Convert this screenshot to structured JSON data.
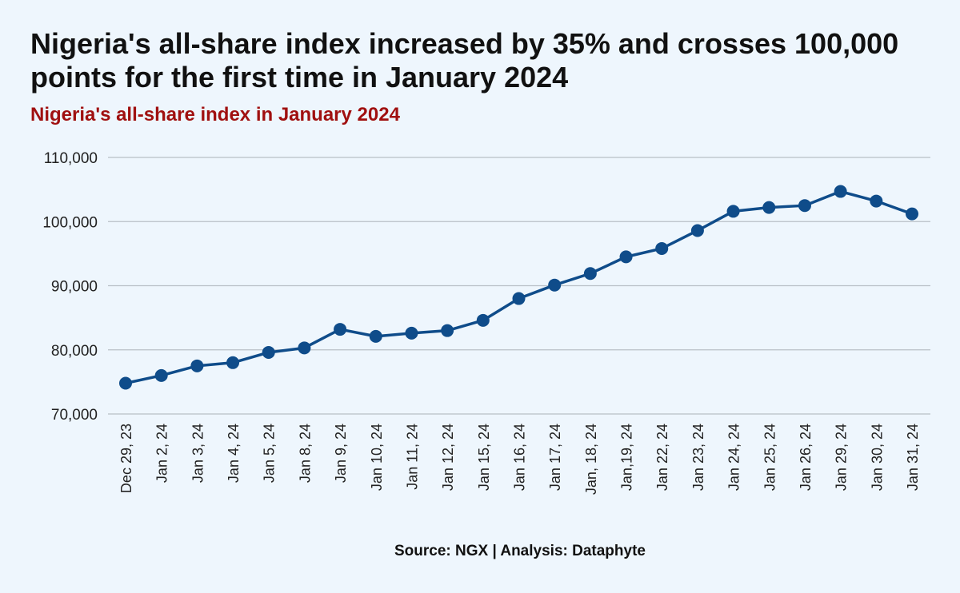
{
  "title": "Nigeria's all-share index increased by 35% and crosses 100,000 points for the first time in January 2024",
  "subtitle": "Nigeria's all-share index in January 2024",
  "source": "Source: NGX | Analysis: Dataphyte",
  "colors": {
    "line": "#0f4c8a",
    "grid": "#b8bfc6",
    "subtitle": "#a01010",
    "background": "#eef6fd"
  },
  "chart_data": {
    "type": "line",
    "title": "Nigeria's all-share index in January 2024",
    "xlabel": "",
    "ylabel": "",
    "ylim": [
      70000,
      110000
    ],
    "yticks": [
      70000,
      80000,
      90000,
      100000,
      110000
    ],
    "ytick_labels": [
      "70,000",
      "80,000",
      "90,000",
      "100,000",
      "110,000"
    ],
    "grid": true,
    "categories": [
      "Dec 29, 23",
      "Jan 2, 24",
      "Jan 3, 24",
      "Jan 4, 24",
      "Jan 5, 24",
      "Jan 8, 24",
      "Jan 9, 24",
      "Jan 10, 24",
      "Jan 11, 24",
      "Jan 12, 24",
      "Jan 15, 24",
      "Jan 16, 24",
      "Jan 17, 24",
      "Jan, 18, 24",
      "Jan,19, 24",
      "Jan 22, 24",
      "Jan 23, 24",
      "Jan 24, 24",
      "Jan 25, 24",
      "Jan 26, 24",
      "Jan 29, 24",
      "Jan 30, 24",
      "Jan 31, 24"
    ],
    "series": [
      {
        "values": [
          74800,
          76000,
          77500,
          78000,
          79600,
          80300,
          83200,
          82100,
          82600,
          83000,
          84600,
          88000,
          90100,
          91900,
          94500,
          95800,
          98600,
          101600,
          102200,
          102500,
          104700,
          103200,
          101200
        ]
      }
    ]
  }
}
